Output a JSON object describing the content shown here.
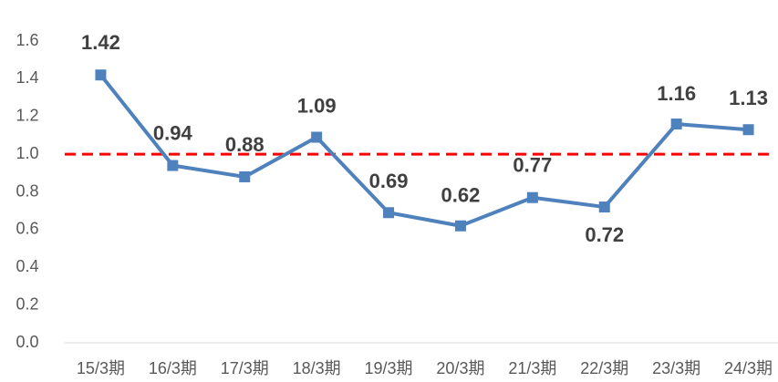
{
  "chart_data": {
    "type": "line",
    "categories": [
      "15/3期",
      "16/3期",
      "17/3期",
      "18/3期",
      "19/3期",
      "20/3期",
      "21/3期",
      "22/3期",
      "23/3期",
      "24/3期"
    ],
    "series": [
      {
        "color": "#4f81bd",
        "values": [
          1.42,
          0.94,
          0.88,
          1.09,
          0.69,
          0.62,
          0.77,
          0.72,
          1.16,
          1.13
        ]
      }
    ],
    "ylim": [
      0,
      1.6
    ],
    "yticks": [
      {
        "value": 0,
        "label": "0.0"
      },
      0.2,
      0.4,
      0.6,
      0.8,
      {
        "value": 1,
        "label": "1.0"
      },
      1.2,
      1.4,
      1.6
    ],
    "reference_line": {
      "value": 1,
      "color": "#ff0000"
    },
    "grid": false
  }
}
